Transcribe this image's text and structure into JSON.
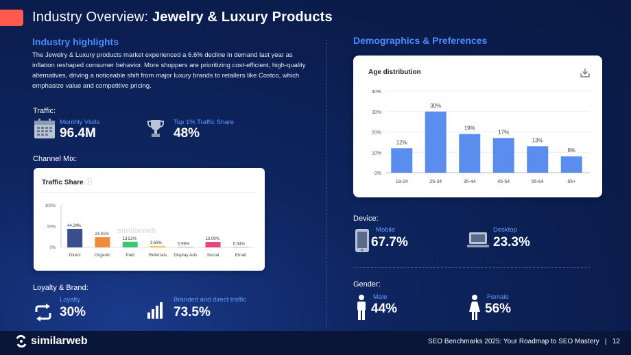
{
  "header": {
    "title_prefix": "Industry Overview:",
    "title_bold": "Jewelry & Luxury Products",
    "accent_color": "#ff5a4e"
  },
  "highlights": {
    "heading": "Industry highlights",
    "paragraph": "The Jewelry & Luxury products market experienced a 6.6% decline in demand last year as inflation reshaped consumer behavior. More shoppers are prioritizing cost-efficient, high-quality alternatives, driving a noticeable shift from major luxury brands to retailers like Costco, which emphasize value and competitive pricing."
  },
  "traffic": {
    "label": "Traffic:",
    "monthly_visits_label": "Monthly Visits",
    "monthly_visits_value": "96.4M",
    "share_label": "Top 1%  Traffic Share",
    "share_value": "48%"
  },
  "channel_mix": {
    "label": "Channel Mix:",
    "card_title": "Traffic Share",
    "watermark": "similarweb"
  },
  "loyalty": {
    "label": "Loyalty & Brand:",
    "loyalty_label": "Loyalty",
    "loyalty_value": "30%",
    "branded_label": "Branded and direct traffic",
    "branded_value": "73.5%"
  },
  "demographics": {
    "heading": "Demographics & Preferences",
    "card_title": "Age distribution"
  },
  "device": {
    "label": "Device:",
    "mobile_label": "Mobile",
    "mobile_value": "67.7%",
    "desktop_label": "Desktop",
    "desktop_value": "23.3%"
  },
  "gender": {
    "label": "Gender:",
    "male_label": "Male",
    "male_value": "44%",
    "female_label": "Female",
    "female_value": "56%"
  },
  "footer": {
    "brand": "similarweb",
    "text": "SEO Benchmarks 2025: Your Roadmap to SEO Mastery   |   12"
  },
  "chart_data": [
    {
      "type": "bar",
      "title": "Traffic Share",
      "categories": [
        "Direct",
        "Organic",
        "Paid",
        "Referrals",
        "Display Ads",
        "Social",
        "Email"
      ],
      "values": [
        44.34,
        24.41,
        13.52,
        3.63,
        0.96,
        13.09,
        0.04
      ],
      "value_labels": [
        "44.34%",
        "24.41%",
        "13.52%",
        "3.63%",
        "0.96%",
        "13.09%",
        "0.04%"
      ],
      "colors": [
        "#3b4f8f",
        "#f08a3c",
        "#3fc66f",
        "#f2c94c",
        "#5b8def",
        "#e8467c",
        "#8e7cc3"
      ],
      "ylim": [
        0,
        100
      ],
      "yticks": [
        "0%",
        "50%",
        "100%"
      ],
      "grid": false
    },
    {
      "type": "bar",
      "title": "Age distribution",
      "categories": [
        "18-24",
        "25-34",
        "35-44",
        "45-54",
        "55-64",
        "65+"
      ],
      "values": [
        12,
        30,
        19,
        17,
        13,
        8
      ],
      "value_labels": [
        "12%",
        "30%",
        "19%",
        "17%",
        "13%",
        "8%"
      ],
      "color": "#5b8def",
      "ylim": [
        0,
        40
      ],
      "yticks": [
        "0%",
        "10%",
        "20%",
        "30%",
        "40%"
      ],
      "grid": true
    }
  ]
}
